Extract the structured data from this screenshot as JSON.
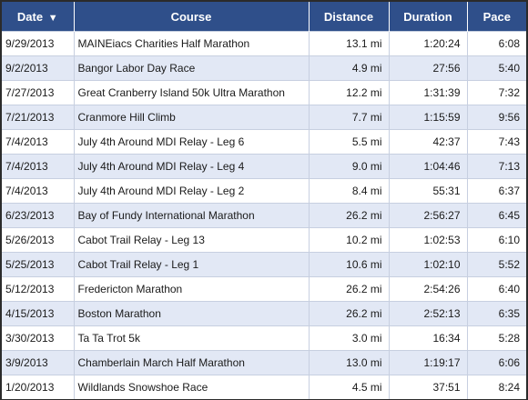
{
  "table": {
    "headers": {
      "date": "Date",
      "date_sort": "▼",
      "course": "Course",
      "distance": "Distance",
      "duration": "Duration",
      "pace": "Pace"
    },
    "rows": [
      {
        "date": "9/29/2013",
        "course": "MAINEiacs Charities Half Marathon",
        "distance": "13.1 mi",
        "duration": "1:20:24",
        "pace": "6:08"
      },
      {
        "date": "9/2/2013",
        "course": "Bangor Labor Day Race",
        "distance": "4.9 mi",
        "duration": "27:56",
        "pace": "5:40"
      },
      {
        "date": "7/27/2013",
        "course": "Great Cranberry Island 50k Ultra Marathon",
        "distance": "12.2 mi",
        "duration": "1:31:39",
        "pace": "7:32"
      },
      {
        "date": "7/21/2013",
        "course": "Cranmore Hill Climb",
        "distance": "7.7 mi",
        "duration": "1:15:59",
        "pace": "9:56"
      },
      {
        "date": "7/4/2013",
        "course": "July 4th Around MDI Relay - Leg 6",
        "distance": "5.5 mi",
        "duration": "42:37",
        "pace": "7:43"
      },
      {
        "date": "7/4/2013",
        "course": "July 4th Around MDI Relay - Leg 4",
        "distance": "9.0 mi",
        "duration": "1:04:46",
        "pace": "7:13"
      },
      {
        "date": "7/4/2013",
        "course": "July 4th Around MDI Relay - Leg 2",
        "distance": "8.4 mi",
        "duration": "55:31",
        "pace": "6:37"
      },
      {
        "date": "6/23/2013",
        "course": "Bay of Fundy International Marathon",
        "distance": "26.2 mi",
        "duration": "2:56:27",
        "pace": "6:45"
      },
      {
        "date": "5/26/2013",
        "course": "Cabot Trail Relay - Leg 13",
        "distance": "10.2 mi",
        "duration": "1:02:53",
        "pace": "6:10"
      },
      {
        "date": "5/25/2013",
        "course": "Cabot Trail Relay - Leg 1",
        "distance": "10.6 mi",
        "duration": "1:02:10",
        "pace": "5:52"
      },
      {
        "date": "5/12/2013",
        "course": "Fredericton Marathon",
        "distance": "26.2 mi",
        "duration": "2:54:26",
        "pace": "6:40"
      },
      {
        "date": "4/15/2013",
        "course": "Boston Marathon",
        "distance": "26.2 mi",
        "duration": "2:52:13",
        "pace": "6:35"
      },
      {
        "date": "3/30/2013",
        "course": "Ta Ta Trot 5k",
        "distance": "3.0 mi",
        "duration": "16:34",
        "pace": "5:28"
      },
      {
        "date": "3/9/2013",
        "course": "Chamberlain March Half Marathon",
        "distance": "13.0 mi",
        "duration": "1:19:17",
        "pace": "6:06"
      },
      {
        "date": "1/20/2013",
        "course": "Wildlands Snowshoe Race",
        "distance": "4.5 mi",
        "duration": "37:51",
        "pace": "8:24"
      }
    ]
  },
  "colors": {
    "header_bg": "#2f4f8a",
    "header_text": "#ffffff",
    "row_alt_bg": "#e2e8f5",
    "row_bg": "#ffffff"
  }
}
